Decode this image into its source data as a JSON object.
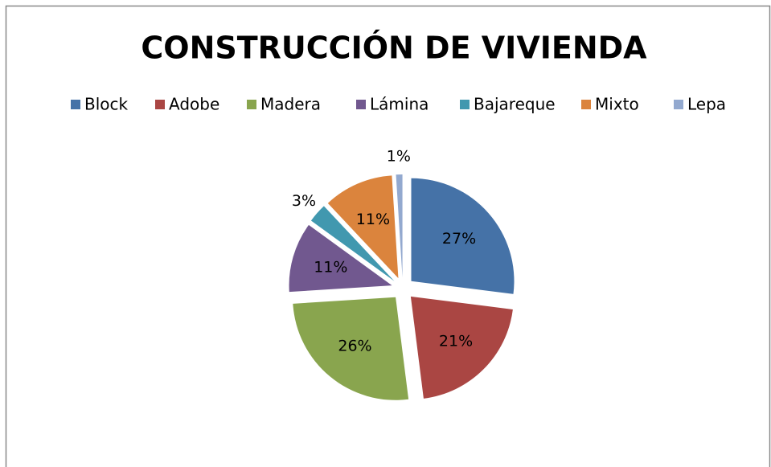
{
  "chart_data": {
    "type": "pie",
    "title": "CONSTRUCCIÓN DE VIVIENDA",
    "categories": [
      "Block",
      "Adobe",
      "Madera",
      "Lámina",
      "Bajareque",
      "Mixto",
      "Lepa"
    ],
    "values": [
      27,
      21,
      26,
      11,
      3,
      11,
      1
    ],
    "value_labels": [
      "27%",
      "21%",
      "26%",
      "11%",
      "3%",
      "11%",
      "1%"
    ],
    "colors": [
      "#4572a7",
      "#aa4643",
      "#89a54e",
      "#71588f",
      "#4198af",
      "#db843d",
      "#93a9cf"
    ],
    "legend": "top"
  }
}
